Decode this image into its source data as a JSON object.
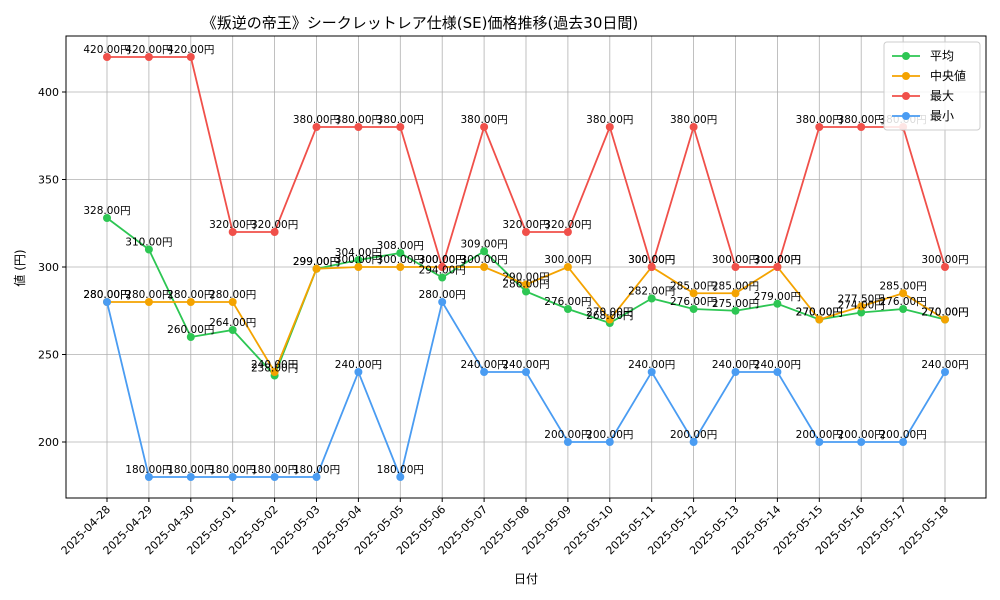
{
  "chart_data": {
    "type": "line",
    "title": "《叛逆の帝王》シークレットレア仕様(SE)価格推移(過去30日間)",
    "xlabel": "日付",
    "ylabel": "値 (円)",
    "x": [
      "2025-04-28",
      "2025-04-29",
      "2025-04-30",
      "2025-05-01",
      "2025-05-02",
      "2025-05-03",
      "2025-05-04",
      "2025-05-05",
      "2025-05-06",
      "2025-05-07",
      "2025-05-08",
      "2025-05-09",
      "2025-05-10",
      "2025-05-11",
      "2025-05-12",
      "2025-05-13",
      "2025-05-14",
      "2025-05-15",
      "2025-05-16",
      "2025-05-17",
      "2025-05-18"
    ],
    "ylim": [
      168,
      432
    ],
    "yticks": [
      200,
      250,
      300,
      350,
      400
    ],
    "grid": true,
    "legend_position": "top-right",
    "value_suffix": "円",
    "series": [
      {
        "name": "平均",
        "color": "#2dc653",
        "values": [
          328,
          310,
          260,
          264,
          238,
          299,
          304,
          308,
          294,
          309,
          286,
          276,
          268,
          282,
          276,
          275,
          279,
          270,
          274,
          276,
          270
        ]
      },
      {
        "name": "中央値",
        "color": "#f4a300",
        "values": [
          280,
          280,
          280,
          280,
          240,
          299,
          300,
          300,
          300,
          300,
          290,
          300,
          270,
          300,
          285,
          285,
          300,
          270,
          277.5,
          285,
          270
        ]
      },
      {
        "name": "最大",
        "color": "#f0504a",
        "values": [
          420,
          420,
          420,
          320,
          320,
          380,
          380,
          380,
          300,
          380,
          320,
          320,
          380,
          300,
          380,
          300,
          300,
          380,
          380,
          380,
          300
        ]
      },
      {
        "name": "最小",
        "color": "#4a9cf2",
        "values": [
          280,
          180,
          180,
          180,
          180,
          180,
          240,
          180,
          280,
          240,
          240,
          200,
          200,
          240,
          200,
          240,
          240,
          200,
          200,
          200,
          240
        ]
      }
    ]
  }
}
